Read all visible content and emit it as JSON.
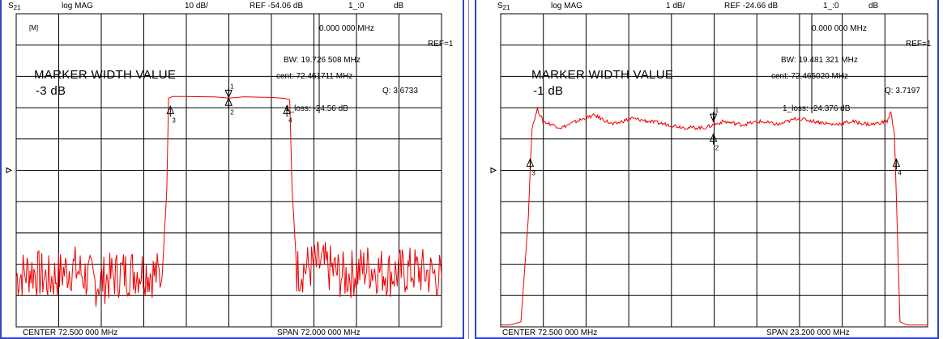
{
  "colors": {
    "trace": "#ee0000",
    "grid": "#000000",
    "frame": "#3344cc"
  },
  "analyzer": [
    {
      "header": {
        "meas": "S",
        "meas_sub": "21",
        "format": "log MAG",
        "scale": "10 dB/",
        "ref": "REF -54.06 dB",
        "marker": "1_:0",
        "unit": "dB"
      },
      "stats": {
        "marker_freq": "0.000 000 MHz",
        "ref_mark": "REF=1",
        "bw": "BW:  19.726 508 MHz",
        "cent": "cent:  72.461711 MHz",
        "q": "Q: 3.6733",
        "loss": "1_loss: -24.56  dB"
      },
      "title": "MARKER WIDTH VALUE",
      "width_value": "-3 dB",
      "corner_tag": "[M]",
      "marker_labels": [
        "1",
        "2",
        "3",
        "4"
      ],
      "footer": {
        "center": "CENTER   72.500 000 MHz",
        "span": "SPAN   72.000 000 MHz"
      }
    },
    {
      "header": {
        "meas": "S",
        "meas_sub": "21",
        "format": "log MAG",
        "scale": "1 dB/",
        "ref": "REF -24.66 dB",
        "marker": "1_:0",
        "unit": "dB"
      },
      "stats": {
        "marker_freq": "0.000 000 MHz",
        "ref_mark": "REF=1",
        "bw": "BW:  19.481 321 MHz",
        "cent": "cent:  72.465020 MHz",
        "q": "Q: 3.7197",
        "loss": "1_loss: -24.376 dB"
      },
      "title": "MARKER WIDTH VALUE",
      "width_value": "-1 dB",
      "marker_labels": [
        "1",
        "2",
        "3",
        "4"
      ],
      "footer": {
        "center": "CENTER   72.500 000 MHz",
        "span": "SPAN   23.200 000 MHz"
      }
    }
  ],
  "chart_data": [
    {
      "type": "line",
      "title": "",
      "xlabel": "",
      "ylabel": "",
      "x_center_mhz": 72.5,
      "x_span_mhz": 72.0,
      "xlim": [
        36.5,
        108.5
      ],
      "ylim": [
        -104.06,
        -4.06
      ],
      "y_ref_db": -54.06,
      "y_scale_db_per_div": 10,
      "grid": true,
      "series": [
        {
          "x": [
            36.5,
            39.0,
            42.0,
            46.0,
            50.0,
            54.0,
            58.0,
            61.2,
            62.0,
            62.3,
            63.0,
            65.0,
            70.0,
            72.5,
            75.0,
            80.0,
            82.0,
            82.8,
            83.2,
            84.0,
            88.0,
            92.0,
            96.0,
            100.0,
            104.0,
            108.5
          ],
          "y": [
            -88,
            -86,
            -89,
            -85,
            -90,
            -87,
            -86,
            -88,
            -60,
            -31,
            -30.5,
            -30.5,
            -30.6,
            -31,
            -30.6,
            -30.8,
            -31.1,
            -31.5,
            -60,
            -86,
            -84,
            -88,
            -85,
            -87,
            -86,
            -88
          ]
        }
      ],
      "markers": [
        {
          "id": "1",
          "x": 72.46,
          "y": -30.8
        },
        {
          "id": "2",
          "x": 72.46,
          "y": -31.0
        },
        {
          "id": "3",
          "x": 62.6,
          "y": -33.6
        },
        {
          "id": "4",
          "x": 82.32,
          "y": -33.6
        }
      ]
    },
    {
      "type": "line",
      "title": "",
      "xlabel": "",
      "ylabel": "",
      "x_center_mhz": 72.5,
      "x_span_mhz": 23.2,
      "xlim": [
        60.9,
        84.1
      ],
      "ylim": [
        -29.66,
        -19.66
      ],
      "y_ref_db": -24.66,
      "y_scale_db_per_div": 1,
      "grid": true,
      "series": [
        {
          "x": [
            60.9,
            61.4,
            62.0,
            62.4,
            62.6,
            62.9,
            63.2,
            63.7,
            64.2,
            65.0,
            66.0,
            67.0,
            68.0,
            69.0,
            70.0,
            71.0,
            72.0,
            73.0,
            74.0,
            75.0,
            76.0,
            77.0,
            78.0,
            79.0,
            80.0,
            81.0,
            81.9,
            82.1,
            82.3,
            82.6,
            83.0,
            84.1
          ],
          "y": [
            -29.6,
            -29.6,
            -29.5,
            -26.2,
            -23.3,
            -22.7,
            -23.1,
            -23.2,
            -23.3,
            -23.1,
            -22.9,
            -23.2,
            -23.0,
            -23.1,
            -23.2,
            -23.3,
            -23.3,
            -23.1,
            -23.2,
            -23.1,
            -23.2,
            -23.0,
            -23.1,
            -23.2,
            -23.1,
            -23.2,
            -23.1,
            -22.8,
            -23.5,
            -29.5,
            -29.6,
            -29.6
          ]
        }
      ],
      "markers": [
        {
          "id": "1",
          "x": 72.46,
          "y": -23.1
        },
        {
          "id": "2",
          "x": 72.46,
          "y": -23.5
        },
        {
          "id": "3",
          "x": 62.5,
          "y": -24.3
        },
        {
          "id": "4",
          "x": 82.4,
          "y": -24.3
        }
      ]
    }
  ]
}
